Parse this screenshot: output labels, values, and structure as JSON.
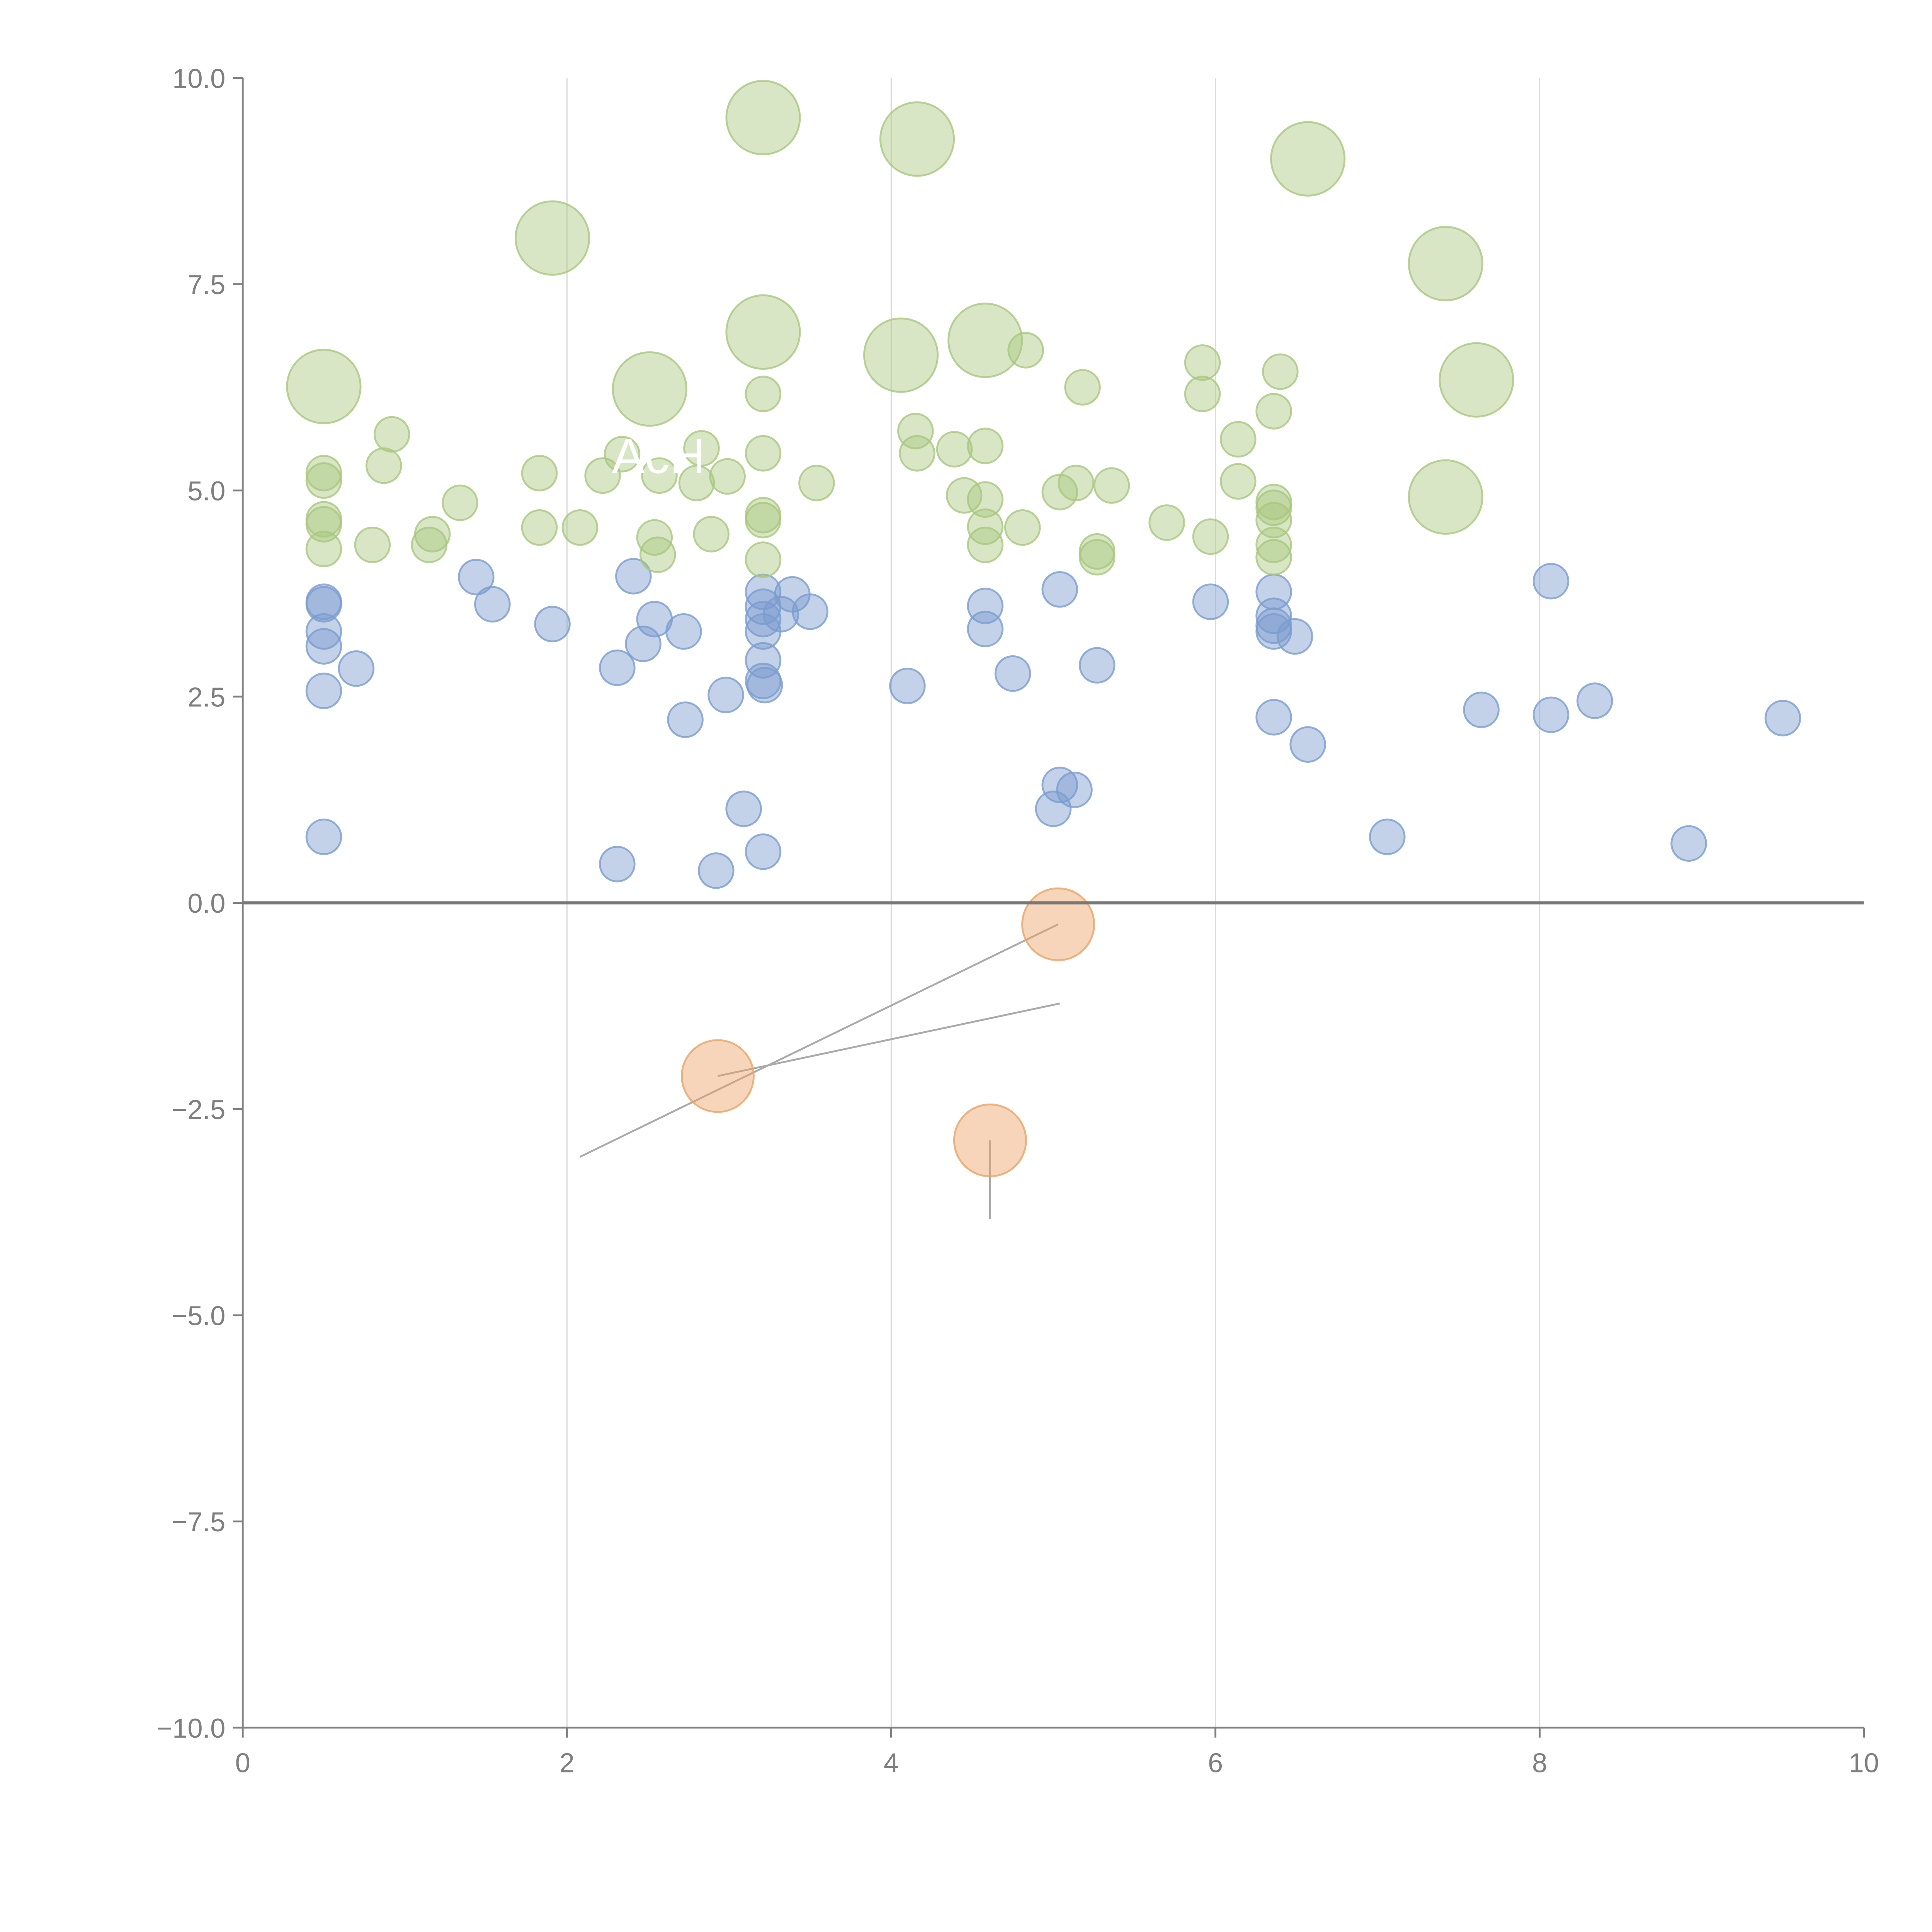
{
  "chart_data": {
    "type": "scatter",
    "title": "",
    "xlabel": "",
    "ylabel": "",
    "xlim": [
      0,
      10
    ],
    "ylim": [
      -10,
      10
    ],
    "xticks": [
      "0",
      "2",
      "4",
      "6",
      "8",
      "10"
    ],
    "yticks": [
      "10.0",
      "7.5",
      "5.0",
      "2.5",
      "0.0",
      "−2.5",
      "−5.0",
      "−7.5",
      "−10.0"
    ],
    "grid": "vertical",
    "annotations": [
      {
        "text": "AcH",
        "x": 3.3,
        "y": 5.4
      }
    ],
    "series": [
      {
        "name": "blue",
        "color": "#7b9ccf",
        "size": 1,
        "points": [
          [
            0.5,
            3.65
          ],
          [
            0.5,
            3.62
          ],
          [
            0.5,
            3.29
          ],
          [
            0.5,
            3.11
          ],
          [
            0.5,
            2.57
          ],
          [
            0.5,
            0.8
          ],
          [
            0.7,
            2.84
          ],
          [
            1.44,
            3.95
          ],
          [
            1.54,
            3.62
          ],
          [
            1.91,
            3.38
          ],
          [
            2.31,
            2.85
          ],
          [
            2.31,
            0.47
          ],
          [
            2.41,
            3.96
          ],
          [
            2.47,
            3.14
          ],
          [
            2.54,
            3.44
          ],
          [
            2.72,
            3.29
          ],
          [
            2.73,
            2.22
          ],
          [
            2.92,
            0.39
          ],
          [
            2.98,
            2.52
          ],
          [
            3.09,
            1.14
          ],
          [
            3.21,
            3.77
          ],
          [
            3.21,
            3.59
          ],
          [
            3.21,
            3.44
          ],
          [
            3.21,
            3.29
          ],
          [
            3.21,
            2.94
          ],
          [
            3.21,
            2.69
          ],
          [
            3.22,
            2.64
          ],
          [
            3.21,
            0.62
          ],
          [
            3.32,
            3.5
          ],
          [
            3.39,
            3.74
          ],
          [
            3.5,
            3.53
          ],
          [
            4.1,
            2.63
          ],
          [
            4.58,
            3.6
          ],
          [
            4.58,
            3.32
          ],
          [
            4.75,
            2.78
          ],
          [
            5.04,
            3.8
          ],
          [
            5.04,
            1.43
          ],
          [
            5.13,
            1.37
          ],
          [
            5.0,
            1.14
          ],
          [
            5.27,
            2.88
          ],
          [
            5.97,
            3.65
          ],
          [
            6.36,
            3.77
          ],
          [
            6.36,
            3.48
          ],
          [
            6.36,
            3.36
          ],
          [
            6.36,
            3.29
          ],
          [
            6.49,
            3.23
          ],
          [
            6.36,
            2.25
          ],
          [
            6.57,
            1.92
          ],
          [
            7.06,
            0.8
          ],
          [
            7.64,
            2.34
          ],
          [
            8.07,
            3.9
          ],
          [
            8.07,
            2.28
          ],
          [
            8.34,
            2.45
          ],
          [
            8.92,
            0.72
          ],
          [
            9.5,
            2.24
          ]
        ]
      },
      {
        "name": "green",
        "color": "#a9c77e",
        "size": 1,
        "points": [
          [
            0.92,
            5.68
          ],
          [
            0.5,
            5.21
          ],
          [
            0.5,
            5.12
          ],
          [
            0.87,
            5.3
          ],
          [
            0.5,
            4.65
          ],
          [
            0.5,
            4.59
          ],
          [
            0.5,
            4.29
          ],
          [
            0.8,
            4.34
          ],
          [
            1.15,
            4.34
          ],
          [
            1.17,
            4.47
          ],
          [
            1.34,
            4.85
          ],
          [
            1.83,
            5.21
          ],
          [
            1.83,
            4.55
          ],
          [
            2.08,
            4.55
          ],
          [
            2.22,
            5.18
          ],
          [
            2.34,
            5.44
          ],
          [
            2.57,
            5.18
          ],
          [
            2.54,
            4.43
          ],
          [
            2.56,
            4.22
          ],
          [
            2.8,
            5.09
          ],
          [
            2.83,
            5.51
          ],
          [
            2.89,
            4.47
          ],
          [
            2.99,
            5.17
          ],
          [
            3.21,
            6.17
          ],
          [
            3.21,
            5.45
          ],
          [
            3.21,
            4.7
          ],
          [
            3.21,
            4.64
          ],
          [
            3.21,
            4.16
          ],
          [
            3.54,
            5.09
          ],
          [
            4.15,
            5.72
          ],
          [
            4.16,
            5.45
          ],
          [
            4.39,
            5.5
          ],
          [
            4.58,
            5.54
          ],
          [
            4.45,
            4.94
          ],
          [
            4.58,
            4.89
          ],
          [
            4.58,
            4.56
          ],
          [
            4.58,
            4.34
          ],
          [
            4.81,
            4.55
          ],
          [
            4.83,
            6.7
          ],
          [
            5.18,
            6.25
          ],
          [
            5.04,
            4.98
          ],
          [
            5.14,
            5.09
          ],
          [
            5.36,
            5.06
          ],
          [
            5.27,
            4.26
          ],
          [
            5.27,
            4.19
          ],
          [
            5.7,
            4.61
          ],
          [
            5.92,
            6.55
          ],
          [
            5.92,
            6.17
          ],
          [
            5.97,
            4.44
          ],
          [
            6.14,
            5.62
          ],
          [
            6.14,
            5.11
          ],
          [
            6.36,
            5.96
          ],
          [
            6.4,
            6.44
          ],
          [
            6.36,
            4.86
          ],
          [
            6.36,
            4.79
          ],
          [
            6.36,
            4.64
          ],
          [
            6.36,
            4.34
          ],
          [
            6.36,
            4.19
          ]
        ]
      },
      {
        "name": "green-large",
        "color": "#a9c77e",
        "size": 4.5,
        "points": [
          [
            3.21,
            9.52
          ],
          [
            4.16,
            9.26
          ],
          [
            6.57,
            9.02
          ],
          [
            1.91,
            8.06
          ],
          [
            7.42,
            7.75
          ],
          [
            3.21,
            6.92
          ],
          [
            4.06,
            6.64
          ],
          [
            4.58,
            6.82
          ],
          [
            0.5,
            6.26
          ],
          [
            2.51,
            6.23
          ],
          [
            7.61,
            6.34
          ],
          [
            7.42,
            4.92
          ]
        ]
      },
      {
        "name": "orange",
        "color": "#eaa266",
        "size": 4.3,
        "points": [
          [
            5.03,
            -0.26
          ],
          [
            2.93,
            -2.1
          ],
          [
            4.61,
            -2.88
          ]
        ],
        "leaders": [
          [
            2.08,
            -3.08
          ],
          [
            5.04,
            -1.22
          ],
          [
            4.61,
            -3.83
          ]
        ]
      }
    ]
  }
}
